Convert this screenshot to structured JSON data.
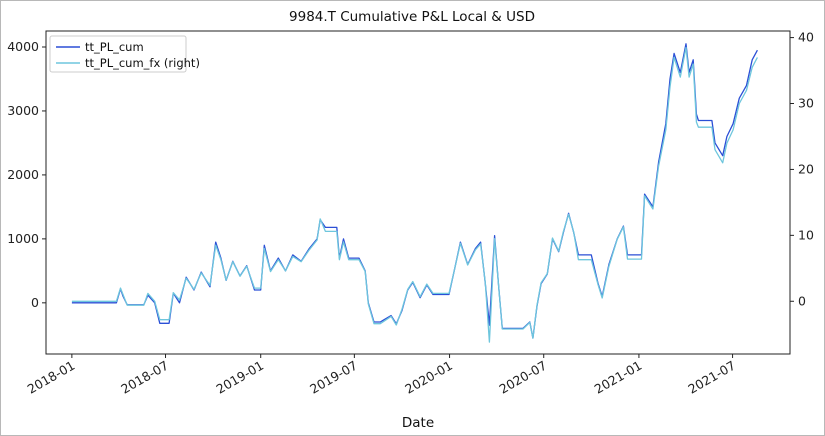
{
  "chart_data": {
    "type": "line",
    "title": "9984.T Cumulative P&L Local & USD",
    "xlabel": "Date",
    "ylabel": "",
    "ylabel_right": "",
    "xlim": [
      "2017-11-12",
      "2021-10-20"
    ],
    "ylim": [
      -800,
      4250
    ],
    "ylim_right": [
      -8,
      41
    ],
    "x_ticks": [
      "2018-01",
      "2018-07",
      "2019-01",
      "2019-07",
      "2020-01",
      "2020-07",
      "2021-01",
      "2021-07"
    ],
    "y_ticks_left": [
      0,
      1000,
      2000,
      3000,
      4000
    ],
    "y_ticks_right": [
      0,
      10,
      20,
      30,
      40
    ],
    "grid": false,
    "legend_position": "top-left",
    "series": [
      {
        "name": "tt_PL_cum",
        "axis": "left",
        "color": "#2b4fd6",
        "points": [
          [
            "2018-01-01",
            0
          ],
          [
            "2018-03-28",
            0
          ],
          [
            "2018-04-05",
            220
          ],
          [
            "2018-04-10",
            100
          ],
          [
            "2018-04-18",
            -30
          ],
          [
            "2018-05-20",
            -30
          ],
          [
            "2018-05-28",
            120
          ],
          [
            "2018-06-10",
            0
          ],
          [
            "2018-06-20",
            -320
          ],
          [
            "2018-07-08",
            -320
          ],
          [
            "2018-07-16",
            150
          ],
          [
            "2018-07-28",
            0
          ],
          [
            "2018-08-10",
            400
          ],
          [
            "2018-08-25",
            200
          ],
          [
            "2018-09-08",
            480
          ],
          [
            "2018-09-25",
            250
          ],
          [
            "2018-10-06",
            950
          ],
          [
            "2018-10-16",
            700
          ],
          [
            "2018-10-26",
            350
          ],
          [
            "2018-11-08",
            650
          ],
          [
            "2018-11-22",
            420
          ],
          [
            "2018-12-05",
            580
          ],
          [
            "2018-12-20",
            200
          ],
          [
            "2019-01-01",
            200
          ],
          [
            "2019-01-08",
            900
          ],
          [
            "2019-01-20",
            500
          ],
          [
            "2019-02-04",
            700
          ],
          [
            "2019-02-18",
            500
          ],
          [
            "2019-03-04",
            750
          ],
          [
            "2019-03-20",
            650
          ],
          [
            "2019-04-05",
            850
          ],
          [
            "2019-04-20",
            1000
          ],
          [
            "2019-04-26",
            1300
          ],
          [
            "2019-05-06",
            1180
          ],
          [
            "2019-05-28",
            1180
          ],
          [
            "2019-06-02",
            700
          ],
          [
            "2019-06-10",
            1000
          ],
          [
            "2019-06-20",
            700
          ],
          [
            "2019-07-10",
            700
          ],
          [
            "2019-07-22",
            500
          ],
          [
            "2019-07-28",
            0
          ],
          [
            "2019-08-08",
            -300
          ],
          [
            "2019-08-20",
            -300
          ],
          [
            "2019-09-10",
            -200
          ],
          [
            "2019-09-20",
            -330
          ],
          [
            "2019-10-01",
            -120
          ],
          [
            "2019-10-12",
            200
          ],
          [
            "2019-10-22",
            320
          ],
          [
            "2019-11-05",
            80
          ],
          [
            "2019-11-18",
            280
          ],
          [
            "2019-11-30",
            130
          ],
          [
            "2019-12-31",
            130
          ],
          [
            "2020-01-10",
            500
          ],
          [
            "2020-01-22",
            950
          ],
          [
            "2020-02-05",
            600
          ],
          [
            "2020-02-20",
            850
          ],
          [
            "2020-03-01",
            950
          ],
          [
            "2020-03-10",
            300
          ],
          [
            "2020-03-18",
            -350
          ],
          [
            "2020-03-28",
            1050
          ],
          [
            "2020-04-05",
            250
          ],
          [
            "2020-04-12",
            -400
          ],
          [
            "2020-05-22",
            -400
          ],
          [
            "2020-06-04",
            -300
          ],
          [
            "2020-06-10",
            -550
          ],
          [
            "2020-06-18",
            -50
          ],
          [
            "2020-06-26",
            300
          ],
          [
            "2020-07-08",
            450
          ],
          [
            "2020-07-18",
            1000
          ],
          [
            "2020-07-30",
            800
          ],
          [
            "2020-08-08",
            1100
          ],
          [
            "2020-08-18",
            1400
          ],
          [
            "2020-08-28",
            1100
          ],
          [
            "2020-09-06",
            750
          ],
          [
            "2020-10-01",
            750
          ],
          [
            "2020-10-14",
            300
          ],
          [
            "2020-10-22",
            100
          ],
          [
            "2020-11-04",
            600
          ],
          [
            "2020-11-20",
            1000
          ],
          [
            "2020-12-02",
            1200
          ],
          [
            "2020-12-10",
            750
          ],
          [
            "2021-01-06",
            750
          ],
          [
            "2021-01-12",
            1700
          ],
          [
            "2021-01-28",
            1500
          ],
          [
            "2021-02-08",
            2200
          ],
          [
            "2021-02-22",
            2800
          ],
          [
            "2021-03-02",
            3500
          ],
          [
            "2021-03-10",
            3900
          ],
          [
            "2021-03-22",
            3600
          ],
          [
            "2021-04-02",
            4050
          ],
          [
            "2021-04-08",
            3600
          ],
          [
            "2021-04-16",
            3800
          ],
          [
            "2021-04-22",
            2950
          ],
          [
            "2021-04-26",
            2850
          ],
          [
            "2021-05-22",
            2850
          ],
          [
            "2021-05-28",
            2500
          ],
          [
            "2021-06-12",
            2300
          ],
          [
            "2021-06-20",
            2600
          ],
          [
            "2021-07-02",
            2800
          ],
          [
            "2021-07-14",
            3200
          ],
          [
            "2021-07-28",
            3400
          ],
          [
            "2021-08-08",
            3800
          ],
          [
            "2021-08-18",
            3950
          ]
        ]
      },
      {
        "name": "tt_PL_cum_fx (right)",
        "axis": "right",
        "color": "#6ec6dd",
        "points": [
          [
            "2018-01-01",
            0
          ],
          [
            "2018-03-28",
            0
          ],
          [
            "2018-04-05",
            2
          ],
          [
            "2018-04-10",
            1
          ],
          [
            "2018-04-18",
            -0.6
          ],
          [
            "2018-05-20",
            -0.6
          ],
          [
            "2018-05-28",
            1.2
          ],
          [
            "2018-06-10",
            0
          ],
          [
            "2018-06-20",
            -2.8
          ],
          [
            "2018-07-08",
            -2.8
          ],
          [
            "2018-07-16",
            1.3
          ],
          [
            "2018-07-28",
            0.2
          ],
          [
            "2018-08-10",
            3.5
          ],
          [
            "2018-08-25",
            1.8
          ],
          [
            "2018-09-08",
            4.3
          ],
          [
            "2018-09-25",
            2.4
          ],
          [
            "2018-10-06",
            8.5
          ],
          [
            "2018-10-16",
            6.3
          ],
          [
            "2018-10-26",
            3.2
          ],
          [
            "2018-11-08",
            6
          ],
          [
            "2018-11-22",
            3.8
          ],
          [
            "2018-12-05",
            5.3
          ],
          [
            "2018-12-20",
            2
          ],
          [
            "2019-01-01",
            2
          ],
          [
            "2019-01-08",
            8
          ],
          [
            "2019-01-20",
            4.5
          ],
          [
            "2019-02-04",
            6.3
          ],
          [
            "2019-02-18",
            4.6
          ],
          [
            "2019-03-04",
            6.8
          ],
          [
            "2019-03-20",
            6
          ],
          [
            "2019-04-05",
            7.8
          ],
          [
            "2019-04-20",
            9.3
          ],
          [
            "2019-04-26",
            12.5
          ],
          [
            "2019-05-06",
            10.6
          ],
          [
            "2019-05-28",
            10.6
          ],
          [
            "2019-06-02",
            6.3
          ],
          [
            "2019-06-10",
            9
          ],
          [
            "2019-06-20",
            6.3
          ],
          [
            "2019-07-10",
            6.3
          ],
          [
            "2019-07-22",
            4.5
          ],
          [
            "2019-07-28",
            -0.4
          ],
          [
            "2019-08-08",
            -3.4
          ],
          [
            "2019-08-20",
            -3.4
          ],
          [
            "2019-09-10",
            -2.3
          ],
          [
            "2019-09-20",
            -3.6
          ],
          [
            "2019-10-01",
            -1.2
          ],
          [
            "2019-10-12",
            1.8
          ],
          [
            "2019-10-22",
            3
          ],
          [
            "2019-11-05",
            0.7
          ],
          [
            "2019-11-18",
            2.6
          ],
          [
            "2019-11-30",
            1.2
          ],
          [
            "2019-12-31",
            1.2
          ],
          [
            "2020-01-10",
            4.6
          ],
          [
            "2020-01-22",
            8.8
          ],
          [
            "2020-02-05",
            5.5
          ],
          [
            "2020-02-20",
            7.8
          ],
          [
            "2020-03-01",
            8.7
          ],
          [
            "2020-03-10",
            2.8
          ],
          [
            "2020-03-18",
            -6.2
          ],
          [
            "2020-03-28",
            9.5
          ],
          [
            "2020-04-05",
            2.2
          ],
          [
            "2020-04-12",
            -4.2
          ],
          [
            "2020-05-22",
            -4.2
          ],
          [
            "2020-06-04",
            -3.2
          ],
          [
            "2020-06-10",
            -5.6
          ],
          [
            "2020-06-18",
            -0.6
          ],
          [
            "2020-06-26",
            2.8
          ],
          [
            "2020-07-08",
            4.2
          ],
          [
            "2020-07-18",
            9.6
          ],
          [
            "2020-07-30",
            7.6
          ],
          [
            "2020-08-08",
            10.6
          ],
          [
            "2020-08-18",
            13.2
          ],
          [
            "2020-08-28",
            10.5
          ],
          [
            "2020-09-06",
            6.3
          ],
          [
            "2020-10-01",
            6.3
          ],
          [
            "2020-10-14",
            2.5
          ],
          [
            "2020-10-22",
            0.5
          ],
          [
            "2020-11-04",
            5.3
          ],
          [
            "2020-11-20",
            9.4
          ],
          [
            "2020-12-02",
            11.3
          ],
          [
            "2020-12-10",
            6.4
          ],
          [
            "2021-01-06",
            6.4
          ],
          [
            "2021-01-12",
            16
          ],
          [
            "2021-01-28",
            14
          ],
          [
            "2021-02-08",
            20.5
          ],
          [
            "2021-02-22",
            26
          ],
          [
            "2021-03-02",
            32.5
          ],
          [
            "2021-03-10",
            37
          ],
          [
            "2021-03-22",
            34
          ],
          [
            "2021-04-02",
            38.5
          ],
          [
            "2021-04-08",
            34
          ],
          [
            "2021-04-16",
            36
          ],
          [
            "2021-04-22",
            27.2
          ],
          [
            "2021-04-26",
            26.4
          ],
          [
            "2021-05-22",
            26.4
          ],
          [
            "2021-05-28",
            23
          ],
          [
            "2021-06-12",
            21
          ],
          [
            "2021-06-20",
            24
          ],
          [
            "2021-07-02",
            26
          ],
          [
            "2021-07-14",
            30
          ],
          [
            "2021-07-28",
            32
          ],
          [
            "2021-08-08",
            35.5
          ],
          [
            "2021-08-18",
            37
          ]
        ]
      }
    ]
  }
}
